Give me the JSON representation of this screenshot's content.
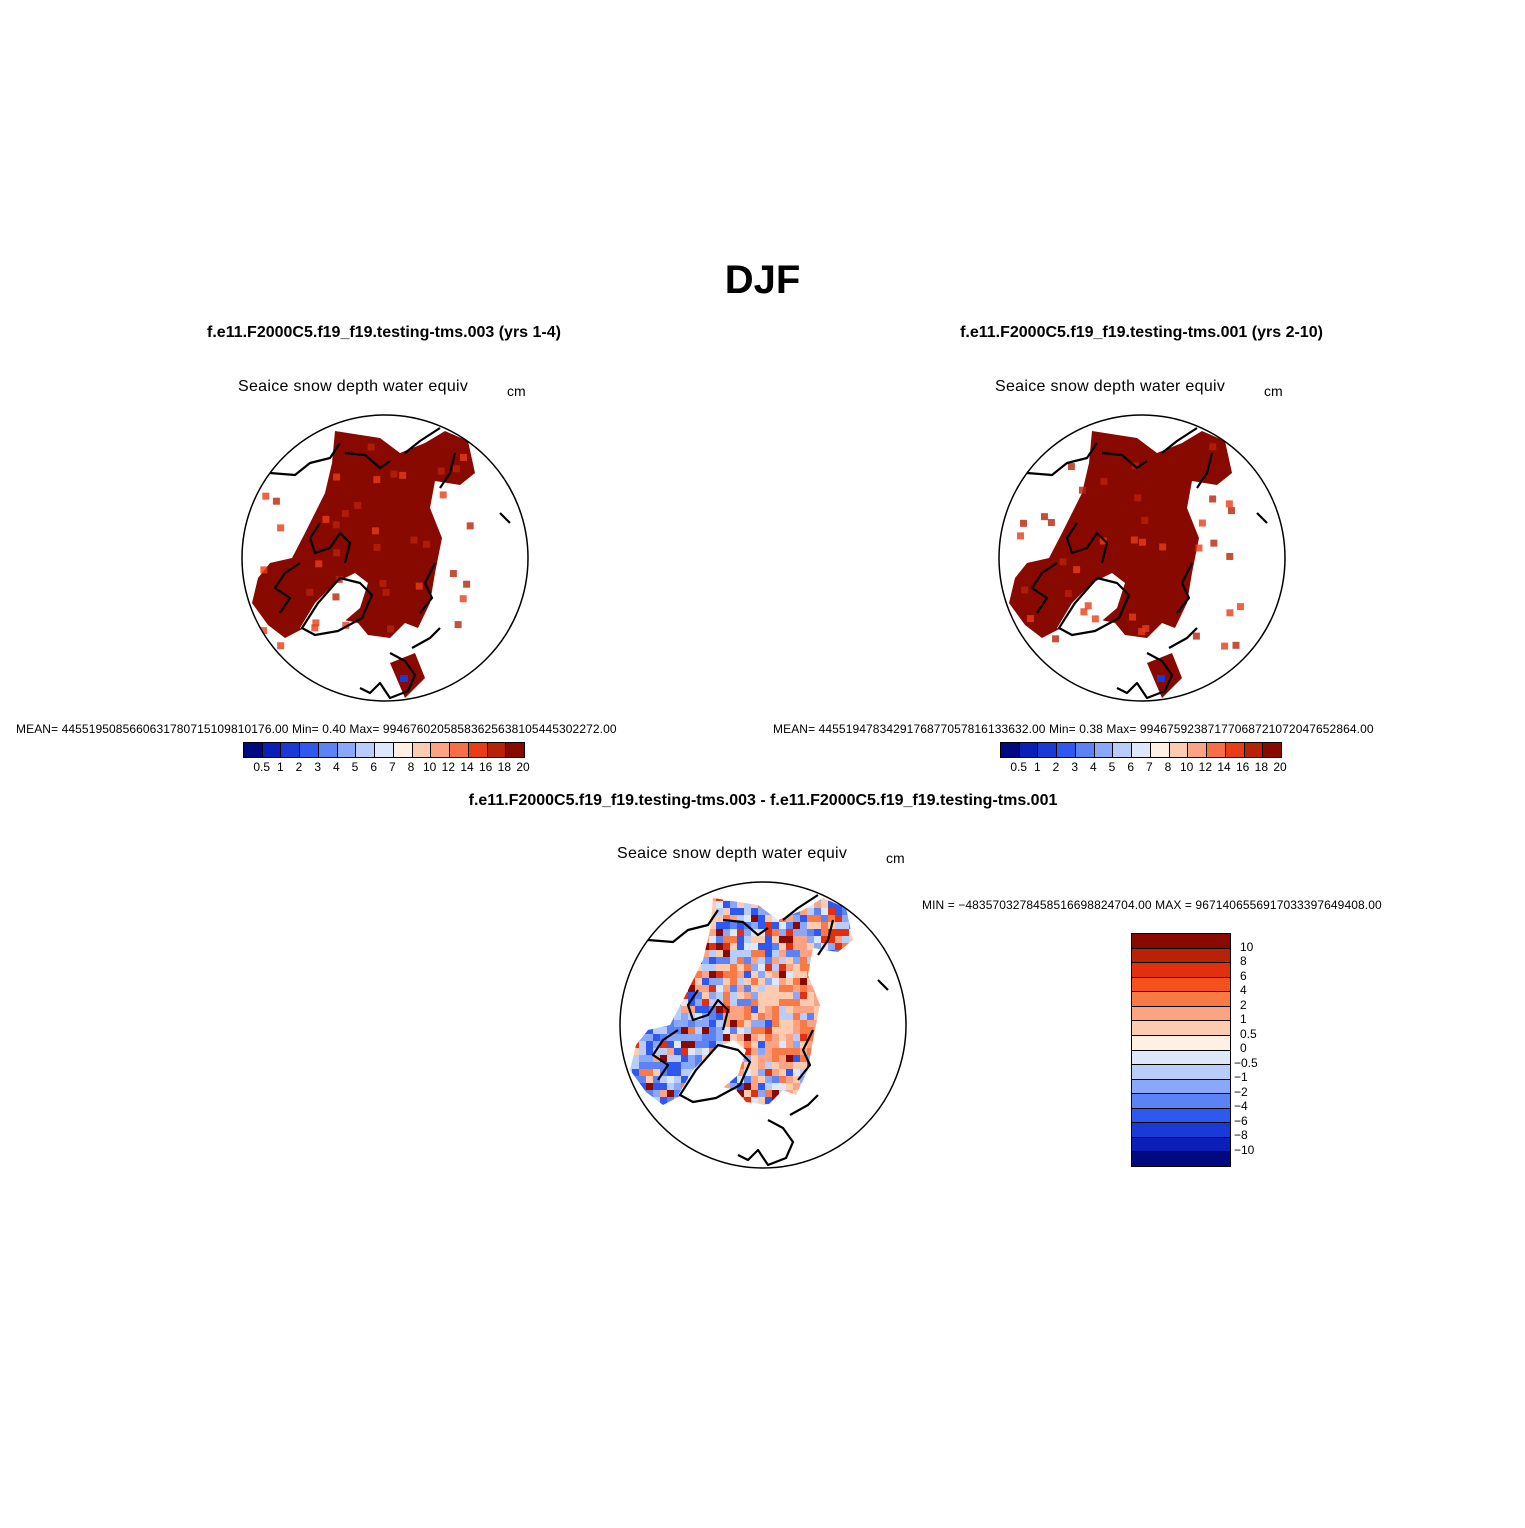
{
  "title": "DJF",
  "panels": [
    {
      "case": "f.e11.F2000C5.f19_f19.testing-tms.003 (yrs 1-4)",
      "variable": "Seaice snow depth water equiv",
      "units": "cm",
      "stats": "MEAN= 4455195085660631780715109810176.00   Min=     0.40   Max= 9946760205858362563810544530227 2.00"
    },
    {
      "case": "f.e11.F2000C5.f19_f19.testing-tms.001 (yrs 2-10)",
      "variable": "Seaice snow depth water equiv",
      "units": "cm",
      "stats": "MEAN= 4455194783429176877057816133632.00   Min=     0.38   Max= 9946759238717706872107204765286 4.00"
    },
    {
      "case": "f.e11.F2000C5.f19_f19.testing-tms.003 - f.e11.F2000C5.f19_f19.testing-tms.001",
      "variable": "Seaice snow depth water equiv",
      "units": "cm",
      "stats": "MIN = −4835703278458516698824704.00 MAX = 9671406556917033397649408.00"
    }
  ],
  "colorbar": {
    "labels": [
      "0.5",
      "1",
      "2",
      "3",
      "4",
      "5",
      "6",
      "7",
      "8",
      "10",
      "12",
      "14",
      "16",
      "18",
      "20"
    ],
    "colors": [
      "#000a80",
      "#0a1fb8",
      "#1a3ad8",
      "#2f58f0",
      "#5c83f5",
      "#8aa8fa",
      "#b9cdfb",
      "#dde8fc",
      "#fff0e4",
      "#fdcbb0",
      "#fca384",
      "#f86e47",
      "#e83d17",
      "#b82308",
      "#870900"
    ]
  },
  "diff_colorbar": {
    "labels": [
      "10",
      "8",
      "6",
      "4",
      "2",
      "1",
      "0.5",
      "0",
      "−0.5",
      "−1",
      "−2",
      "−4",
      "−6",
      "−8",
      "−10"
    ],
    "colors": [
      "#870900",
      "#b82308",
      "#e03010",
      "#f5501d",
      "#f97a47",
      "#fca384",
      "#fdcbb0",
      "#fff0e4",
      "#dde8fc",
      "#b9cdfb",
      "#8aa8fa",
      "#5c83f5",
      "#2f58f0",
      "#1a3ad8",
      "#0a1fb8",
      "#000a80"
    ]
  }
}
